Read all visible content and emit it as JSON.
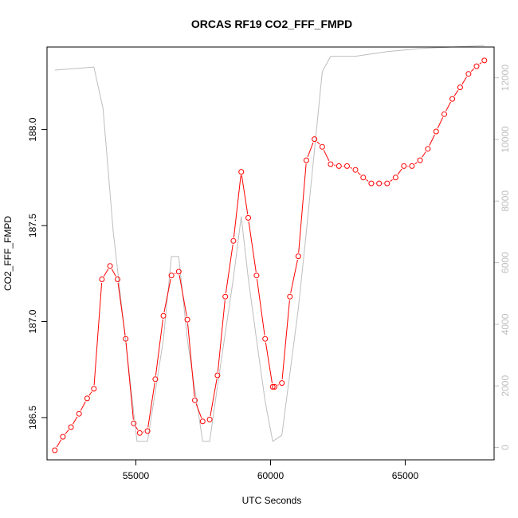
{
  "chart_data": {
    "type": "line",
    "title": "ORCAS RF19 CO2_FFF_FMPD",
    "xlabel": "UTC Seconds",
    "ylabel": "CO2_FFF_FMPD",
    "xlim": [
      51700,
      68300
    ],
    "ylim": [
      186.28,
      188.43
    ],
    "y2lim": [
      -400,
      13000
    ],
    "x_ticks": [
      55000,
      60000,
      65000
    ],
    "x_tick_labels": [
      "55000",
      "60000",
      "65000"
    ],
    "y_ticks": [
      186.5,
      187.0,
      187.5,
      188.0
    ],
    "y_tick_labels": [
      "186.5",
      "187.0",
      "187.5",
      "188.0"
    ],
    "y2_ticks": [
      0,
      2000,
      4000,
      6000,
      8000,
      10000,
      12000
    ],
    "y2_tick_labels": [
      "0",
      "2000",
      "4000",
      "6000",
      "8000",
      "10000",
      "12000"
    ],
    "grid": false,
    "colors": {
      "co2": "#ff0000",
      "altitude": "#bebebe",
      "axes": "#000000"
    },
    "series": [
      {
        "axis": "left",
        "style": "line+points",
        "x": [
          51990,
          52290,
          52590,
          52890,
          53190,
          53440,
          53740,
          54040,
          54320,
          54620,
          54920,
          55140,
          55430,
          55720,
          56020,
          56320,
          56590,
          56910,
          57190,
          57480,
          57740,
          58030,
          58320,
          58620,
          58910,
          59170,
          59480,
          59800,
          60080,
          60150,
          60420,
          60720,
          61030,
          61330,
          61630,
          61920,
          62230,
          62540,
          62840,
          63150,
          63440,
          63740,
          64030,
          64330,
          64640,
          64950,
          65250,
          65550,
          65840,
          66150,
          66450,
          66750,
          67040,
          67350,
          67650,
          67940
        ],
        "values": [
          186.33,
          186.4,
          186.45,
          186.52,
          186.6,
          186.65,
          187.22,
          187.29,
          187.22,
          186.91,
          186.47,
          186.42,
          186.43,
          186.7,
          187.03,
          187.24,
          187.26,
          187.01,
          186.59,
          186.48,
          186.49,
          186.72,
          187.13,
          187.42,
          187.78,
          187.54,
          187.24,
          186.91,
          186.66,
          186.66,
          186.68,
          187.13,
          187.34,
          187.84,
          187.95,
          187.91,
          187.82,
          187.81,
          187.81,
          187.79,
          187.75,
          187.72,
          187.72,
          187.72,
          187.75,
          187.81,
          187.81,
          187.84,
          187.9,
          187.99,
          188.08,
          188.16,
          188.22,
          188.29,
          188.33,
          188.36
        ]
      },
      {
        "axis": "right",
        "style": "line",
        "x": [
          51990,
          53440,
          53780,
          54160,
          55040,
          55140,
          55430,
          56020,
          56320,
          56590,
          56910,
          57480,
          57740,
          58030,
          58620,
          58910,
          59170,
          59480,
          59800,
          60080,
          60420,
          61030,
          61330,
          61920,
          62230,
          63150,
          64330,
          65550,
          66750,
          67940
        ],
        "values": [
          12250,
          12350,
          11000,
          7000,
          200,
          200,
          200,
          3500,
          6200,
          6200,
          3500,
          200,
          200,
          2000,
          5500,
          7500,
          5500,
          3500,
          1500,
          200,
          400,
          4500,
          7000,
          12200,
          12700,
          12700,
          12850,
          12950,
          13000,
          13050
        ]
      }
    ]
  }
}
